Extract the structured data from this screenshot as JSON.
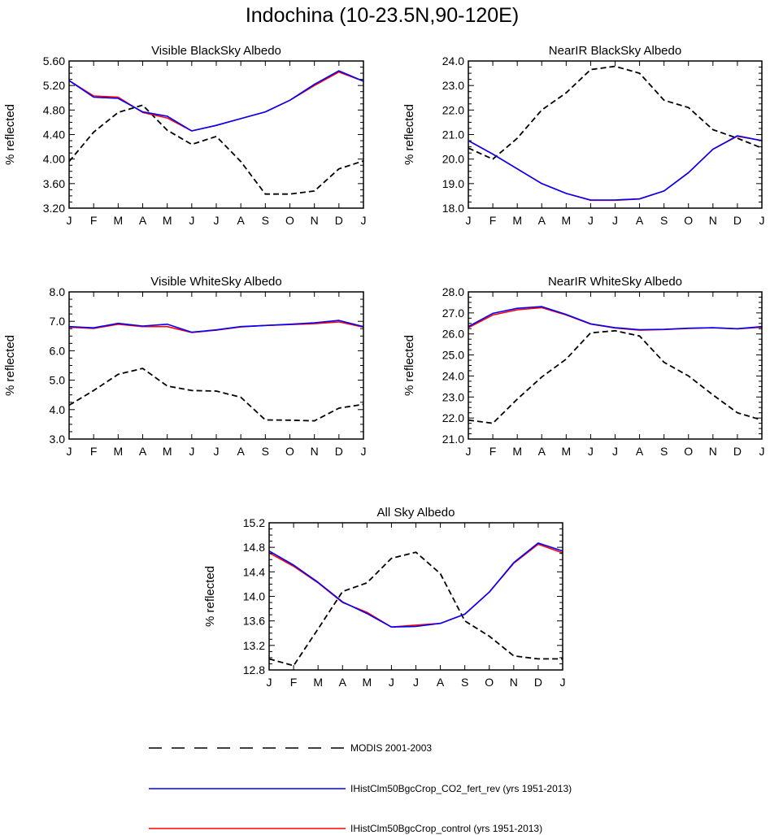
{
  "title": "Indochina (10-23.5N,90-120E)",
  "colors": {
    "modis": "#000000",
    "co2": "#0000ff",
    "control": "#ff0000"
  },
  "legend": [
    {
      "label": "MODIS 2001-2003",
      "color": "#000000",
      "dash": true
    },
    {
      "label": "IHistClm50BgcCrop_CO2_fert_rev (yrs 1951-2013)",
      "color": "#0000ff",
      "dash": false
    },
    {
      "label": "IHistClm50BgcCrop_control (yrs 1951-2013)",
      "color": "#ff0000",
      "dash": false
    }
  ],
  "chart_data": [
    {
      "type": "line",
      "title": "Visible BlackSky Albedo",
      "ylabel": "% reflected",
      "categories": [
        "J",
        "F",
        "M",
        "A",
        "M",
        "J",
        "J",
        "A",
        "S",
        "O",
        "N",
        "D",
        "J"
      ],
      "ylim": [
        3.2,
        5.6
      ],
      "yticks": [
        "3.20",
        "3.60",
        "4.00",
        "4.40",
        "4.80",
        "5.20",
        "5.60"
      ],
      "series": [
        {
          "name": "MODIS 2001-2003",
          "values": [
            3.96,
            4.44,
            4.76,
            4.88,
            4.47,
            4.24,
            4.37,
            3.96,
            3.43,
            3.43,
            3.48,
            3.84,
            3.97
          ]
        },
        {
          "name": "IHistClm50BgcCrop_CO2_fert_rev (yrs 1951-2013)",
          "values": [
            5.28,
            5.01,
            4.99,
            4.77,
            4.7,
            4.46,
            4.55,
            4.66,
            4.77,
            4.96,
            5.22,
            5.44,
            5.27
          ]
        },
        {
          "name": "IHistClm50BgcCrop_control (yrs 1951-2013)",
          "values": [
            5.28,
            5.03,
            5.01,
            4.76,
            4.67,
            4.46,
            4.55,
            4.66,
            4.77,
            4.96,
            5.2,
            5.42,
            5.27
          ]
        }
      ]
    },
    {
      "type": "line",
      "title": "NearIR BlackSky Albedo",
      "ylabel": "% reflected",
      "categories": [
        "J",
        "F",
        "M",
        "A",
        "M",
        "J",
        "J",
        "A",
        "S",
        "O",
        "N",
        "D",
        "J"
      ],
      "ylim": [
        18.0,
        24.0
      ],
      "yticks": [
        "18.0",
        "19.0",
        "20.0",
        "21.0",
        "22.0",
        "23.0",
        "24.0"
      ],
      "series": [
        {
          "name": "MODIS 2001-2003",
          "values": [
            20.45,
            20.0,
            20.85,
            22.0,
            22.7,
            23.65,
            23.78,
            23.5,
            22.4,
            22.1,
            21.2,
            20.85,
            20.45
          ]
        },
        {
          "name": "IHistClm50BgcCrop_CO2_fert_rev (yrs 1951-2013)",
          "values": [
            20.75,
            20.2,
            19.6,
            19.0,
            18.6,
            18.33,
            18.33,
            18.38,
            18.7,
            19.45,
            20.4,
            20.95,
            20.75
          ]
        },
        {
          "name": "IHistClm50BgcCrop_control (yrs 1951-2013)",
          "values": [
            20.75,
            20.2,
            19.6,
            19.0,
            18.6,
            18.32,
            18.32,
            18.37,
            18.7,
            19.45,
            20.4,
            20.93,
            20.75
          ]
        }
      ]
    },
    {
      "type": "line",
      "title": "Visible WhiteSky Albedo",
      "ylabel": "% reflected",
      "categories": [
        "J",
        "F",
        "M",
        "A",
        "M",
        "J",
        "J",
        "A",
        "S",
        "O",
        "N",
        "D",
        "J"
      ],
      "ylim": [
        3.0,
        8.0
      ],
      "yticks": [
        "3.0",
        "4.0",
        "5.0",
        "6.0",
        "7.0",
        "8.0"
      ],
      "series": [
        {
          "name": "MODIS 2001-2003",
          "values": [
            4.15,
            4.65,
            5.2,
            5.4,
            4.8,
            4.65,
            4.63,
            4.42,
            3.65,
            3.64,
            3.62,
            4.05,
            4.18
          ]
        },
        {
          "name": "IHistClm50BgcCrop_CO2_fert_rev (yrs 1951-2013)",
          "values": [
            6.82,
            6.78,
            6.93,
            6.84,
            6.9,
            6.63,
            6.71,
            6.82,
            6.86,
            6.9,
            6.95,
            7.03,
            6.82
          ]
        },
        {
          "name": "IHistClm50BgcCrop_control (yrs 1951-2013)",
          "values": [
            6.8,
            6.76,
            6.9,
            6.82,
            6.82,
            6.62,
            6.7,
            6.81,
            6.86,
            6.89,
            6.92,
            6.98,
            6.8
          ]
        }
      ]
    },
    {
      "type": "line",
      "title": "NearIR WhiteSky Albedo",
      "ylabel": "% reflected",
      "categories": [
        "J",
        "F",
        "M",
        "A",
        "M",
        "J",
        "J",
        "A",
        "S",
        "O",
        "N",
        "D",
        "J"
      ],
      "ylim": [
        21.0,
        28.0
      ],
      "yticks": [
        "21.0",
        "22.0",
        "23.0",
        "24.0",
        "25.0",
        "26.0",
        "27.0",
        "28.0"
      ],
      "series": [
        {
          "name": "MODIS 2001-2003",
          "values": [
            21.9,
            21.75,
            22.9,
            23.95,
            24.8,
            26.05,
            26.15,
            25.9,
            24.65,
            24.0,
            23.1,
            22.25,
            21.9
          ]
        },
        {
          "name": "IHistClm50BgcCrop_CO2_fert_rev (yrs 1951-2013)",
          "values": [
            26.35,
            26.98,
            27.22,
            27.3,
            26.93,
            26.48,
            26.3,
            26.2,
            26.22,
            26.27,
            26.3,
            26.25,
            26.35
          ]
        },
        {
          "name": "IHistClm50BgcCrop_control (yrs 1951-2013)",
          "values": [
            26.3,
            26.9,
            27.15,
            27.25,
            26.9,
            26.47,
            26.28,
            26.18,
            26.21,
            26.26,
            26.29,
            26.24,
            26.32
          ]
        }
      ]
    },
    {
      "type": "line",
      "title": "All Sky Albedo",
      "ylabel": "% reflected",
      "categories": [
        "J",
        "F",
        "M",
        "A",
        "M",
        "J",
        "J",
        "A",
        "S",
        "O",
        "N",
        "D",
        "J"
      ],
      "ylim": [
        12.8,
        15.2
      ],
      "yticks": [
        "12.8",
        "13.2",
        "13.6",
        "14.0",
        "14.4",
        "14.8",
        "15.2"
      ],
      "series": [
        {
          "name": "MODIS 2001-2003",
          "values": [
            12.98,
            12.87,
            13.47,
            14.08,
            14.22,
            14.62,
            14.72,
            14.37,
            13.6,
            13.35,
            13.03,
            12.98,
            12.98
          ]
        },
        {
          "name": "IHistClm50BgcCrop_CO2_fert_rev (yrs 1951-2013)",
          "values": [
            14.74,
            14.51,
            14.23,
            13.91,
            13.72,
            13.5,
            13.51,
            13.56,
            13.71,
            14.07,
            14.55,
            14.87,
            14.74
          ]
        },
        {
          "name": "IHistClm50BgcCrop_control (yrs 1951-2013)",
          "values": [
            14.71,
            14.49,
            14.22,
            13.9,
            13.74,
            13.5,
            13.53,
            13.56,
            13.71,
            14.07,
            14.54,
            14.85,
            14.71
          ]
        }
      ]
    }
  ]
}
